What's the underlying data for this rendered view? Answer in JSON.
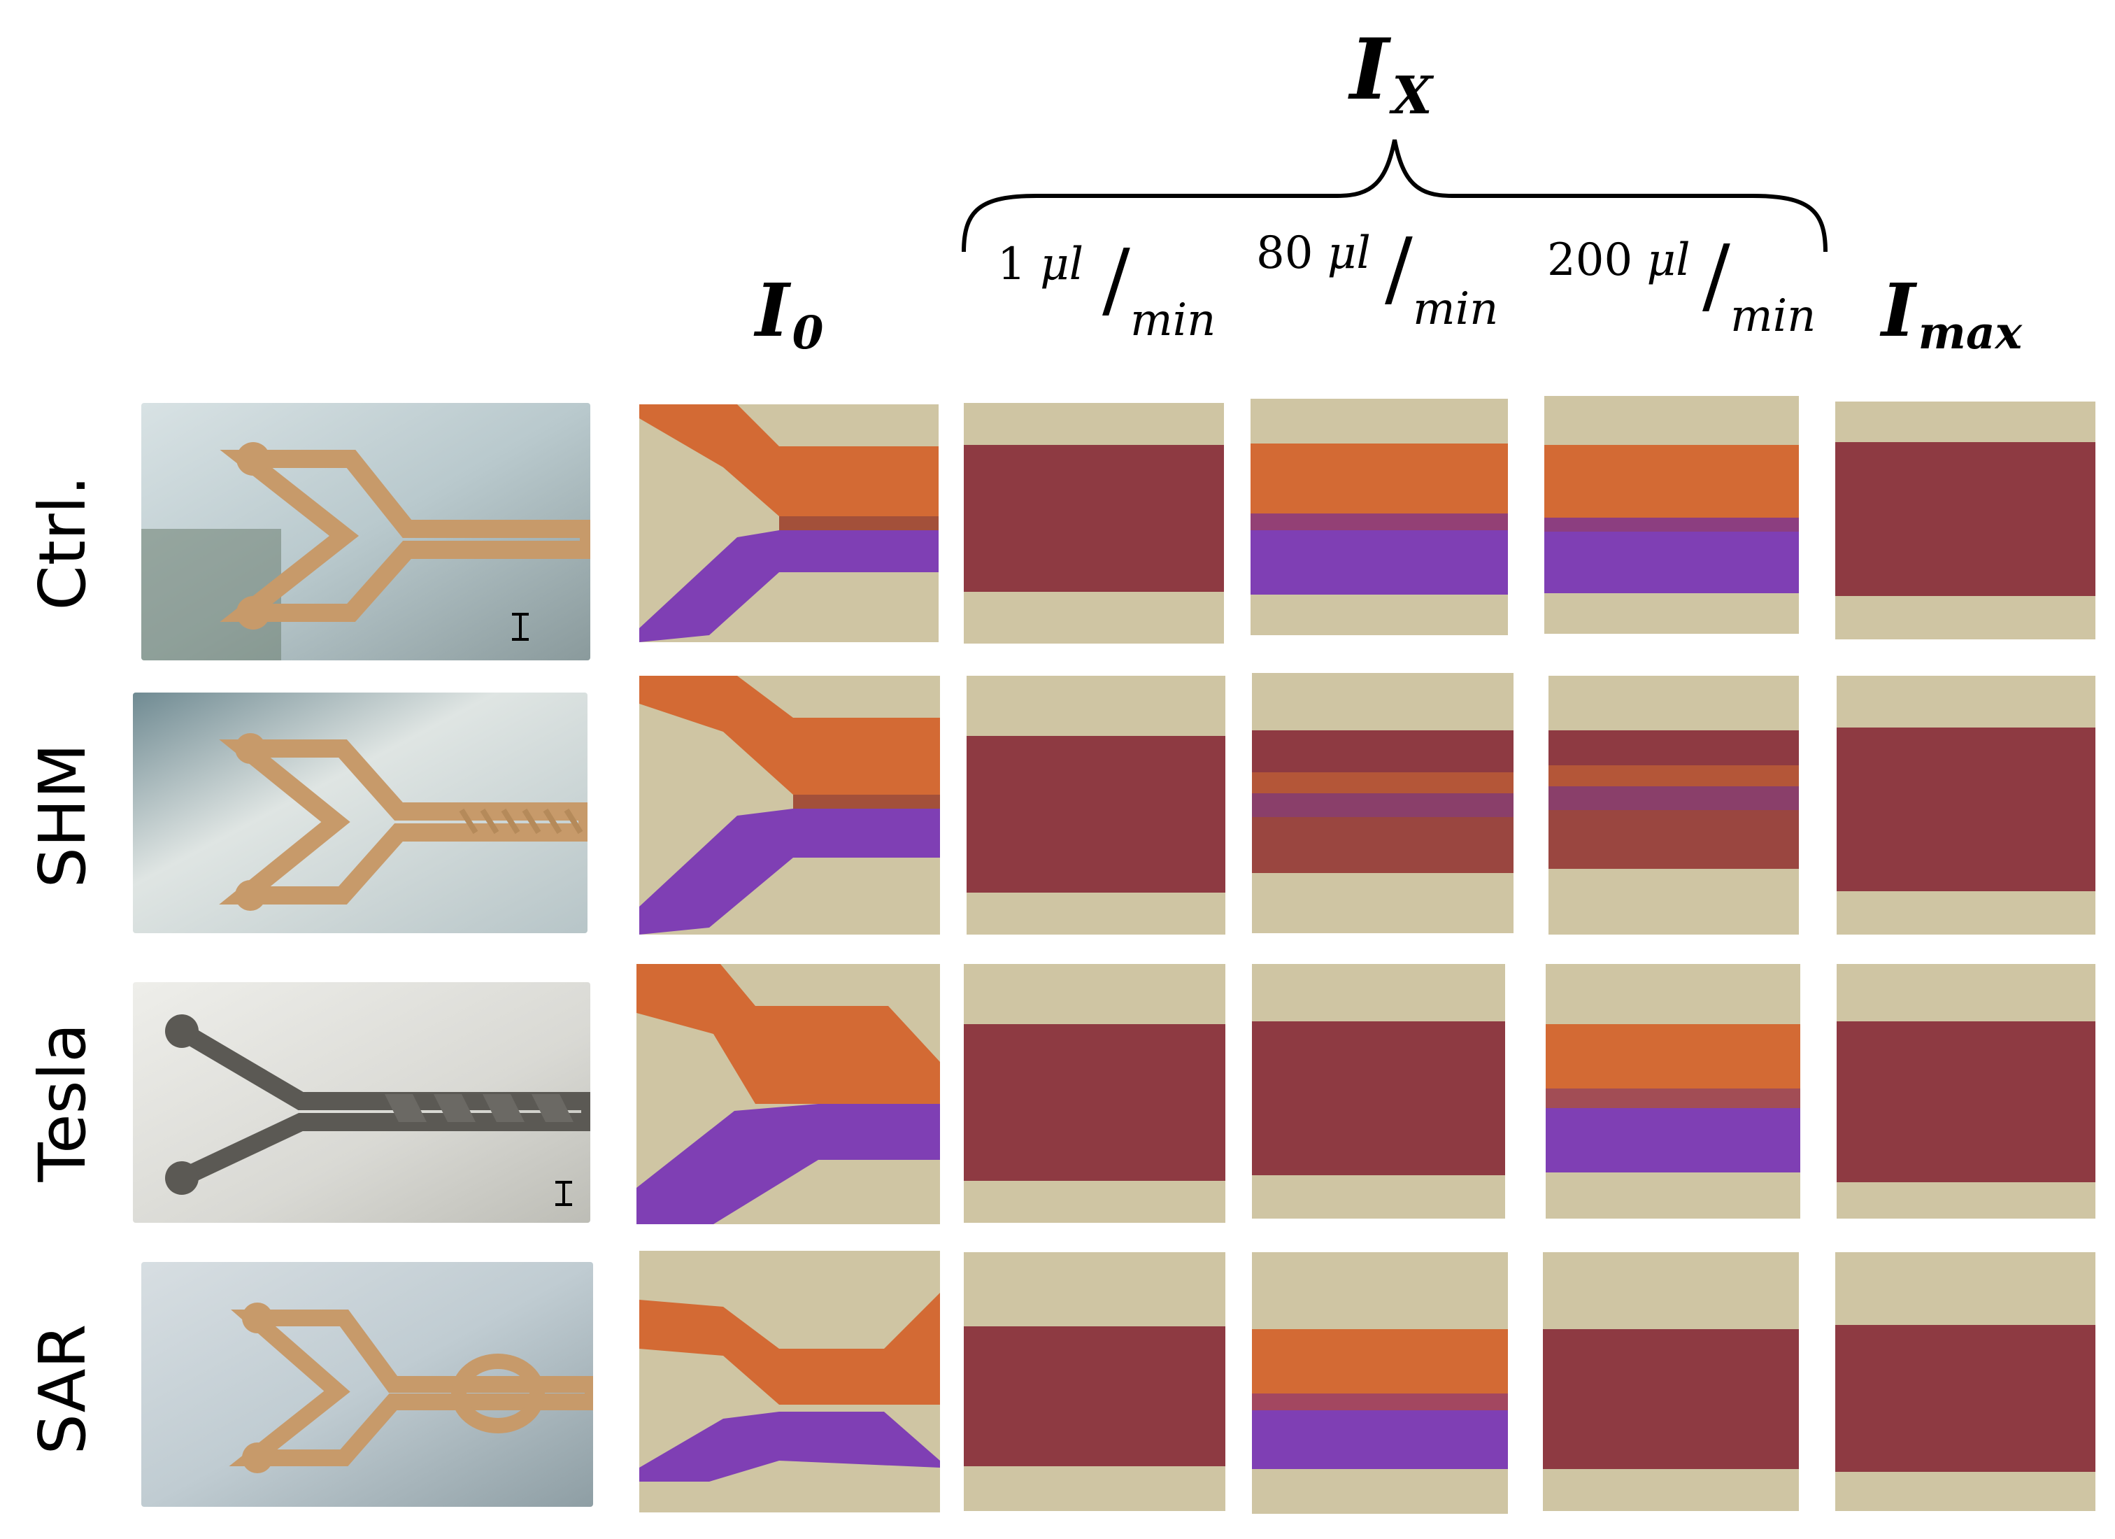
{
  "header": {
    "ix_label": {
      "letter": "I",
      "sub": "X"
    },
    "i0_label": {
      "letter": "I",
      "sub": "0"
    },
    "imax_label": {
      "letter": "I",
      "sub": "max"
    },
    "flow_rates": [
      {
        "value": "1",
        "unit_top": "μl",
        "unit_bottom": "min"
      },
      {
        "value": "80",
        "unit_top": "μl",
        "unit_bottom": "min"
      },
      {
        "value": "200",
        "unit_top": "μl",
        "unit_bottom": "min"
      }
    ]
  },
  "rows": [
    {
      "label": "Ctrl."
    },
    {
      "label": "SHM"
    },
    {
      "label": "Tesla"
    },
    {
      "label": "SAR"
    }
  ],
  "colors": {
    "background_channel": "#cfc5a3",
    "orange_dye": "#d36a34",
    "purple_dye": "#7f3fb4",
    "mixed_dye": "#8e3a42",
    "device_resin": "#c79a6a",
    "device_background": "#c7d4d8"
  },
  "panel_states": {
    "ctrl": {
      "1": "mixed",
      "80": "separated",
      "200": "separated"
    },
    "shm": {
      "1": "mixed",
      "80": "partially-mixed",
      "200": "partially-mixed"
    },
    "tesla": {
      "1": "mixed",
      "80": "mixed",
      "200": "separated"
    },
    "sar": {
      "1": "mixed",
      "80": "separated",
      "200": "mixed"
    }
  }
}
